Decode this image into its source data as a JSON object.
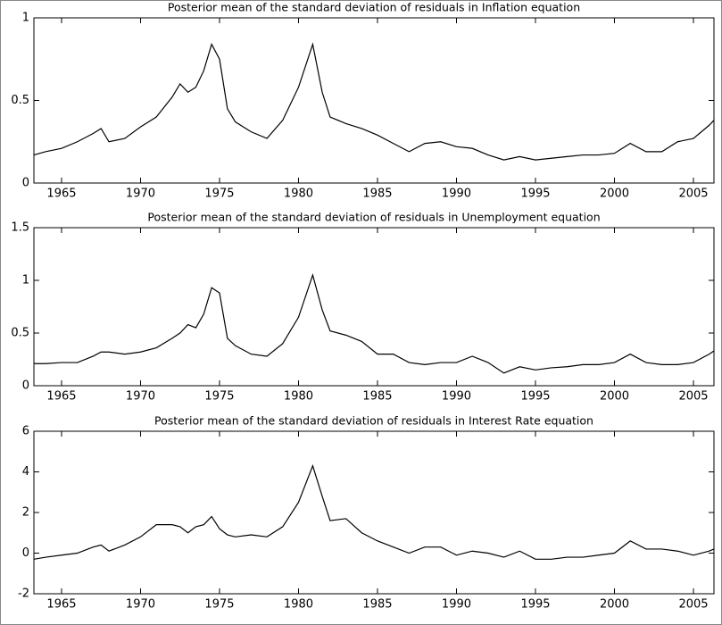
{
  "chart_data": [
    {
      "type": "line",
      "title": "Posterior mean of the standard deviation of residuals in Inflation equation",
      "x": [
        1963.25,
        1964,
        1965,
        1966,
        1967,
        1967.5,
        1968,
        1969,
        1970,
        1971,
        1972,
        1972.5,
        1973,
        1973.5,
        1974,
        1974.5,
        1975,
        1975.5,
        1976,
        1977,
        1978,
        1979,
        1980,
        1980.9,
        1981.5,
        1982,
        1983,
        1984,
        1985,
        1986,
        1987,
        1988,
        1989,
        1990,
        1991,
        1992,
        1993,
        1994,
        1995,
        1996,
        1997,
        1998,
        1999,
        2000,
        2001,
        2002,
        2003,
        2004,
        2005,
        2006,
        2006.3
      ],
      "values": [
        0.17,
        0.19,
        0.21,
        0.25,
        0.3,
        0.33,
        0.25,
        0.27,
        0.34,
        0.4,
        0.52,
        0.6,
        0.55,
        0.58,
        0.68,
        0.84,
        0.75,
        0.45,
        0.37,
        0.31,
        0.27,
        0.38,
        0.58,
        0.84,
        0.55,
        0.4,
        0.36,
        0.33,
        0.29,
        0.24,
        0.19,
        0.24,
        0.25,
        0.22,
        0.21,
        0.17,
        0.14,
        0.16,
        0.14,
        0.15,
        0.16,
        0.17,
        0.17,
        0.18,
        0.24,
        0.19,
        0.19,
        0.25,
        0.27,
        0.35,
        0.38
      ],
      "color": "#000000",
      "xlim": [
        1963.25,
        2006.3
      ],
      "xticks": [
        1965,
        1970,
        1975,
        1980,
        1985,
        1990,
        1995,
        2000,
        2005
      ],
      "ylim": [
        0,
        1
      ],
      "yticks": [
        0,
        0.5,
        1
      ]
    },
    {
      "type": "line",
      "title": "Posterior mean of the standard deviation of residuals in Unemployment equation",
      "x": [
        1963.25,
        1964,
        1965,
        1966,
        1967,
        1967.5,
        1968,
        1969,
        1970,
        1971,
        1972,
        1972.5,
        1973,
        1973.5,
        1974,
        1974.5,
        1975,
        1975.5,
        1976,
        1977,
        1978,
        1979,
        1980,
        1980.9,
        1981.5,
        1982,
        1983,
        1984,
        1985,
        1986,
        1987,
        1988,
        1989,
        1990,
        1991,
        1992,
        1993,
        1994,
        1995,
        1996,
        1997,
        1998,
        1999,
        2000,
        2001,
        2002,
        2003,
        2004,
        2005,
        2006,
        2006.3
      ],
      "values": [
        0.21,
        0.21,
        0.22,
        0.22,
        0.28,
        0.32,
        0.32,
        0.3,
        0.32,
        0.36,
        0.45,
        0.5,
        0.58,
        0.55,
        0.68,
        0.93,
        0.88,
        0.45,
        0.38,
        0.3,
        0.28,
        0.4,
        0.65,
        1.05,
        0.72,
        0.52,
        0.48,
        0.42,
        0.3,
        0.3,
        0.22,
        0.2,
        0.22,
        0.22,
        0.28,
        0.22,
        0.12,
        0.18,
        0.15,
        0.17,
        0.18,
        0.2,
        0.2,
        0.22,
        0.3,
        0.22,
        0.2,
        0.2,
        0.22,
        0.3,
        0.33
      ],
      "color": "#000000",
      "xlim": [
        1963.25,
        2006.3
      ],
      "xticks": [
        1965,
        1970,
        1975,
        1980,
        1985,
        1990,
        1995,
        2000,
        2005
      ],
      "ylim": [
        0,
        1.5
      ],
      "yticks": [
        0,
        0.5,
        1,
        1.5
      ]
    },
    {
      "type": "line",
      "title": "Posterior mean of the standard deviation of residuals in Interest Rate equation",
      "x": [
        1963.25,
        1964,
        1965,
        1966,
        1967,
        1967.5,
        1968,
        1969,
        1970,
        1971,
        1972,
        1972.5,
        1973,
        1973.5,
        1974,
        1974.5,
        1975,
        1975.5,
        1976,
        1977,
        1978,
        1979,
        1980,
        1980.9,
        1981.5,
        1982,
        1983,
        1984,
        1985,
        1986,
        1987,
        1988,
        1989,
        1990,
        1991,
        1992,
        1993,
        1994,
        1995,
        1996,
        1997,
        1998,
        1999,
        2000,
        2001,
        2002,
        2003,
        2004,
        2005,
        2006,
        2006.3
      ],
      "values": [
        -0.3,
        -0.2,
        -0.1,
        0,
        0.3,
        0.4,
        0.1,
        0.4,
        0.8,
        1.4,
        1.4,
        1.3,
        1.0,
        1.3,
        1.4,
        1.8,
        1.2,
        0.9,
        0.8,
        0.9,
        0.8,
        1.3,
        2.5,
        4.3,
        2.8,
        1.6,
        1.7,
        1.0,
        0.6,
        0.3,
        0.0,
        0.3,
        0.3,
        -0.1,
        0.1,
        0.0,
        -0.2,
        0.1,
        -0.3,
        -0.3,
        -0.2,
        -0.2,
        -0.1,
        0.0,
        0.6,
        0.2,
        0.2,
        0.1,
        -0.1,
        0.1,
        0.2
      ],
      "color": "#000000",
      "xlim": [
        1963.25,
        2006.3
      ],
      "xticks": [
        1965,
        1970,
        1975,
        1980,
        1985,
        1990,
        1995,
        2000,
        2005
      ],
      "ylim": [
        -2,
        6
      ],
      "yticks": [
        -2,
        0,
        2,
        4,
        6
      ]
    }
  ]
}
